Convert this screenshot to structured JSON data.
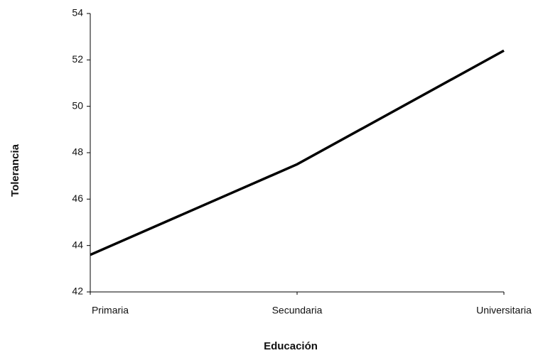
{
  "chart_data": {
    "type": "line",
    "categories": [
      "Primaria",
      "Secundaria",
      "Universitaria"
    ],
    "series": [
      {
        "name": "Tolerancia",
        "color": "#000000",
        "values": [
          43.6,
          47.5,
          52.4
        ]
      }
    ],
    "xlabel": "Educación",
    "ylabel": "Tolerancia",
    "ylim": [
      42,
      54
    ],
    "yticks": [
      42,
      44,
      46,
      48,
      50,
      52,
      54
    ],
    "grid": false
  }
}
